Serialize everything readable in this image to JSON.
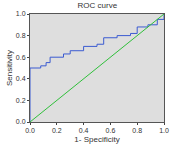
{
  "chart_data": {
    "type": "line",
    "title": "ROC curve",
    "x_label": "1- Specificity",
    "y_label": "Sensitivity",
    "series": [
      {
        "color": "#3b5bd1",
        "line_style": "solid",
        "x": [
          0,
          0,
          0.08,
          0.08,
          0.12,
          0.12,
          0.15,
          0.15,
          0.25,
          0.25,
          0.3,
          0.3,
          0.4,
          0.4,
          0.5,
          0.5,
          0.55,
          0.55,
          0.65,
          0.65,
          0.75,
          0.75,
          0.8,
          0.8,
          0.88,
          0.88,
          0.95,
          0.95,
          1,
          1
        ],
        "values": [
          0,
          0.5,
          0.5,
          0.52,
          0.52,
          0.55,
          0.55,
          0.6,
          0.6,
          0.63,
          0.63,
          0.66,
          0.66,
          0.7,
          0.7,
          0.72,
          0.72,
          0.78,
          0.78,
          0.8,
          0.8,
          0.82,
          0.82,
          0.88,
          0.88,
          0.9,
          0.9,
          0.95,
          0.95,
          1
        ]
      },
      {
        "color": "#2fbf3a",
        "line_style": "solid",
        "x": [
          0,
          1
        ],
        "values": [
          0,
          1
        ]
      }
    ],
    "xlim": [
      0,
      1
    ],
    "ylim": [
      0,
      1
    ],
    "xticks": [
      {
        "value": 0,
        "label": "0.0"
      },
      {
        "value": 0.2,
        "label": "0.2"
      },
      {
        "value": 0.4,
        "label": "0.4"
      },
      {
        "value": 0.6,
        "label": "0.6"
      },
      {
        "value": 0.8,
        "label": "0.8"
      },
      {
        "value": 1,
        "label": "1.0"
      }
    ],
    "yticks": [
      {
        "value": 0,
        "label": "0.0"
      },
      {
        "value": 0.2,
        "label": "0.2"
      },
      {
        "value": 0.4,
        "label": "0.4"
      },
      {
        "value": 0.6,
        "label": "0.6"
      },
      {
        "value": 0.8,
        "label": "0.8"
      },
      {
        "value": 1,
        "label": "1.0"
      }
    ],
    "grid": false
  }
}
